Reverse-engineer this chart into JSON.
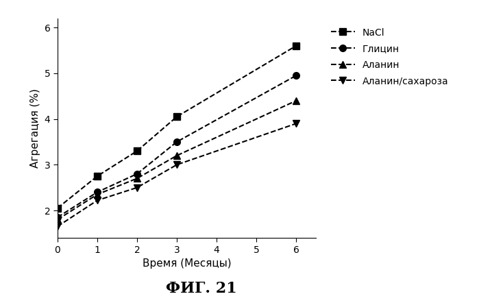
{
  "x": [
    0,
    1,
    2,
    3,
    6
  ],
  "series": [
    {
      "label": "NaCl",
      "y": [
        2.05,
        2.75,
        3.3,
        4.05,
        5.6
      ],
      "marker": "s",
      "color": "#000000",
      "linestyle": "--"
    },
    {
      "label": "Глицин",
      "y": [
        1.85,
        2.4,
        2.8,
        3.5,
        4.95
      ],
      "marker": "o",
      "color": "#000000",
      "linestyle": "--"
    },
    {
      "label": "Аланин",
      "y": [
        1.8,
        2.35,
        2.7,
        3.2,
        4.4
      ],
      "marker": "^",
      "color": "#000000",
      "linestyle": "--"
    },
    {
      "label": "Аланин/сахароза",
      "y": [
        1.65,
        2.22,
        2.5,
        3.0,
        3.9
      ],
      "marker": "v",
      "color": "#000000",
      "linestyle": "--"
    }
  ],
  "xlabel": "Время (Месяцы)",
  "ylabel": "Агрегация (%)",
  "xlim": [
    0,
    6.5
  ],
  "ylim": [
    1.4,
    6.2
  ],
  "xticks": [
    0,
    1,
    2,
    3,
    4,
    5,
    6
  ],
  "yticks": [
    2.0,
    3.0,
    4.0,
    5.0,
    6.0
  ],
  "title": "ФИГ. 21",
  "background_color": "#ffffff"
}
